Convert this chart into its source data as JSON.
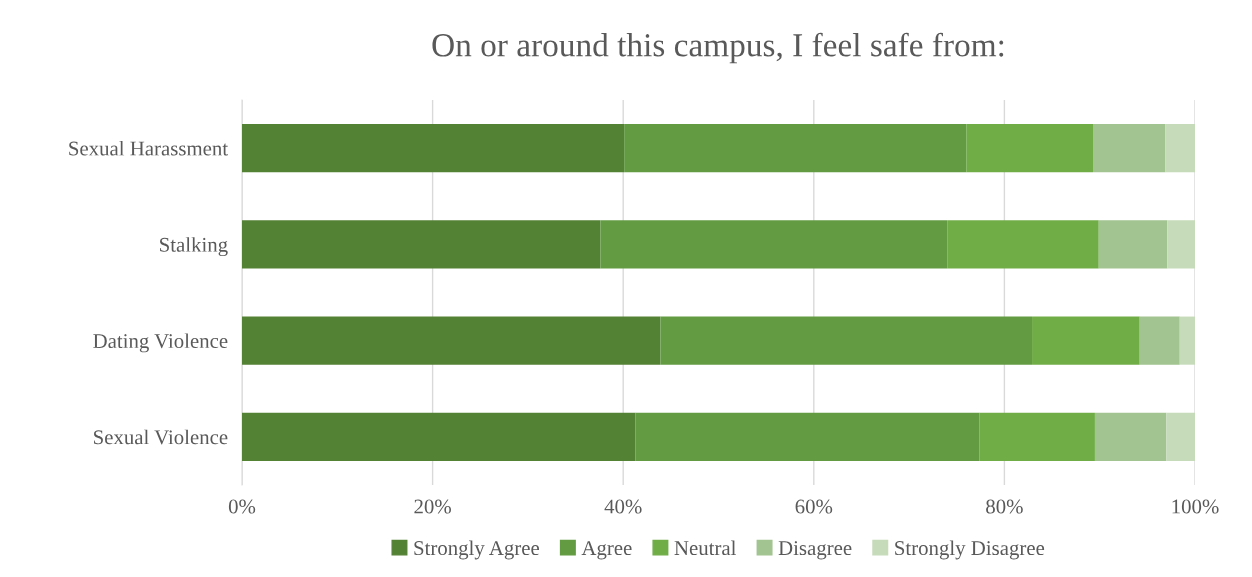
{
  "chart_data": {
    "type": "bar",
    "orientation": "horizontal",
    "stacked": true,
    "title": "On or around this campus, I feel safe from:",
    "categories": [
      "Sexual Harassment",
      "Stalking",
      "Dating Violence",
      "Sexual Violence"
    ],
    "series": [
      {
        "name": "Strongly Agree",
        "color": "#548235",
        "values": [
          40.1,
          37.6,
          43.9,
          41.3
        ]
      },
      {
        "name": "Agree",
        "color": "#629b42",
        "values": [
          35.9,
          36.4,
          39.0,
          36.1
        ]
      },
      {
        "name": "Neutral",
        "color": "#70ad47",
        "values": [
          13.3,
          15.9,
          11.3,
          12.1
        ]
      },
      {
        "name": "Disagree",
        "color": "#a1c490",
        "values": [
          7.6,
          7.2,
          4.2,
          7.5
        ]
      },
      {
        "name": "Strongly Disagree",
        "color": "#c5dbb9",
        "values": [
          3.1,
          2.9,
          1.6,
          3.0
        ]
      }
    ],
    "xlim": [
      0,
      100
    ],
    "xticks": [
      {
        "value": 0,
        "label": "0%"
      },
      {
        "value": 20,
        "label": "20%"
      },
      {
        "value": 40,
        "label": "40%"
      },
      {
        "value": 60,
        "label": "60%"
      },
      {
        "value": 80,
        "label": "80%"
      },
      {
        "value": 100,
        "label": "100%"
      }
    ],
    "grid": "x",
    "legend": "bottom"
  }
}
